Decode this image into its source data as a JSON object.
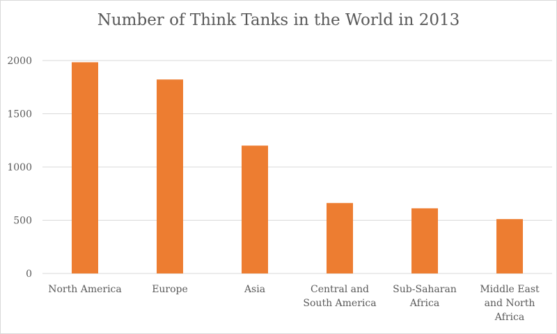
{
  "chart_data": {
    "type": "bar",
    "title": "Number of Think Tanks in the World in 2013",
    "categories": [
      "North America",
      "Europe",
      "Asia",
      "Central and South America",
      "Sub-Saharan Africa",
      "Middle East and North Africa"
    ],
    "category_lines": [
      [
        "North America"
      ],
      [
        "Europe"
      ],
      [
        "Asia"
      ],
      [
        "Central and",
        "South America"
      ],
      [
        "Sub-Saharan",
        "Africa"
      ],
      [
        "Middle East",
        "and North",
        "Africa"
      ]
    ],
    "values": [
      1984,
      1822,
      1201,
      662,
      612,
      511
    ],
    "ylim": [
      0,
      2000
    ],
    "yticks": [
      0,
      500,
      1000,
      1500,
      2000
    ],
    "grid": true,
    "legend": "none",
    "xlabel": "",
    "ylabel": "",
    "bar_color": "#ED7D31",
    "grid_color": "#D9D9D9"
  }
}
